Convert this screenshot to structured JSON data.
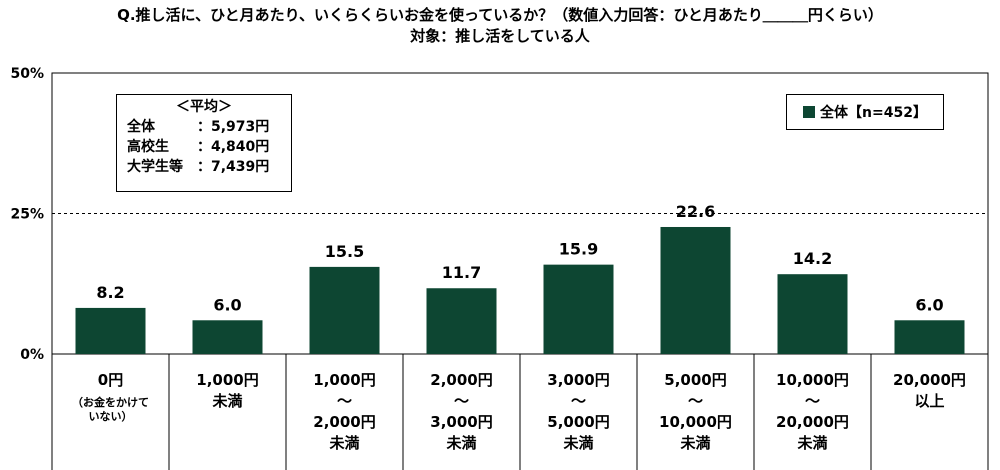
{
  "title": "Q.推し活に、ひと月あたり、いくらくらいお金を使っているか？（数値入力回答：ひと月あたり＿＿＿円くらい）",
  "subtitle": "対象：推し活をしている人",
  "chart_data": {
    "type": "bar",
    "categories": [
      [
        "0円",
        "（お金をかけて",
        "いない）"
      ],
      [
        "1,000円",
        "未満"
      ],
      [
        "1,000円",
        "～",
        "2,000円",
        "未満"
      ],
      [
        "2,000円",
        "～",
        "3,000円",
        "未満"
      ],
      [
        "3,000円",
        "～",
        "5,000円",
        "未満"
      ],
      [
        "5,000円",
        "～",
        "10,000円",
        "未満"
      ],
      [
        "10,000円",
        "～",
        "20,000円",
        "未満"
      ],
      [
        "20,000円",
        "以上"
      ]
    ],
    "series": [
      {
        "name": "全体【n=452】",
        "values": [
          8.2,
          6.0,
          15.5,
          11.7,
          15.9,
          22.6,
          14.2,
          6.0
        ]
      }
    ],
    "value_labels": [
      "8.2",
      "6.0",
      "15.5",
      "11.7",
      "15.9",
      "22.6",
      "14.2",
      "6.0"
    ],
    "y_ticks": [
      0,
      25,
      50
    ],
    "y_tick_labels": [
      "0%",
      "25%",
      "50%"
    ],
    "ylim": [
      0,
      50
    ],
    "bar_color": "#0d4632",
    "legend_position": "top-right"
  },
  "stats_box": {
    "header": "＜平均＞",
    "rows": [
      {
        "label": "全体",
        "value": "：5,973円"
      },
      {
        "label": "高校生",
        "value": "：4,840円"
      },
      {
        "label": "大学生等",
        "value": "：7,439円"
      }
    ]
  }
}
